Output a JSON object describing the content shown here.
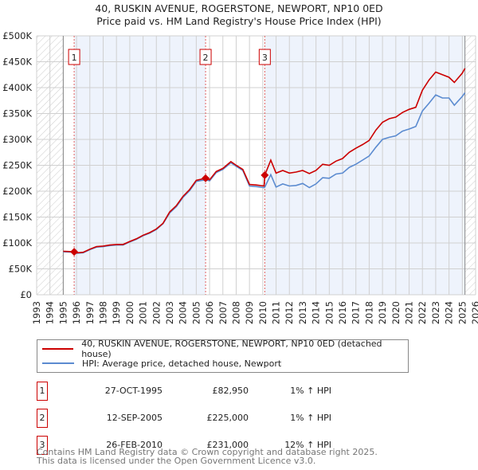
{
  "chart_data": {
    "type": "line",
    "title": "40, RUSKIN AVENUE, ROGERSTONE, NEWPORT, NP10 0ED",
    "subtitle": "Price paid vs. HM Land Registry's House Price Index (HPI)",
    "xlim": [
      1993,
      2026
    ],
    "ylim": [
      0,
      500000
    ],
    "x_ticks": [
      "1993",
      "1994",
      "1995",
      "1996",
      "1997",
      "1998",
      "1999",
      "2000",
      "2001",
      "2002",
      "2003",
      "2004",
      "2005",
      "2006",
      "2007",
      "2008",
      "2009",
      "2010",
      "2011",
      "2012",
      "2013",
      "2014",
      "2015",
      "2016",
      "2017",
      "2018",
      "2019",
      "2020",
      "2021",
      "2022",
      "2023",
      "2024",
      "2025",
      "2026"
    ],
    "y_ticks": [
      {
        "v": 0,
        "label": "£0"
      },
      {
        "v": 50000,
        "label": "£50K"
      },
      {
        "v": 100000,
        "label": "£100K"
      },
      {
        "v": 150000,
        "label": "£150K"
      },
      {
        "v": 200000,
        "label": "£200K"
      },
      {
        "v": 250000,
        "label": "£250K"
      },
      {
        "v": 300000,
        "label": "£300K"
      },
      {
        "v": 350000,
        "label": "£350K"
      },
      {
        "v": 400000,
        "label": "£400K"
      },
      {
        "v": 450000,
        "label": "£450K"
      },
      {
        "v": 500000,
        "label": "£500K"
      }
    ],
    "grid": true,
    "data_start": 1995.0,
    "data_end": 2025.2,
    "series": [
      {
        "name": "40, RUSKIN AVENUE, ROGERSTONE, NEWPORT, NP10 0ED (detached house)",
        "color": "#cc0000",
        "x": [
          1995,
          1995.8,
          1996,
          1996.5,
          1997,
          1997.5,
          1998,
          1998.5,
          1999,
          1999.5,
          2000,
          2000.5,
          2001,
          2001.5,
          2002,
          2002.5,
          2003,
          2003.5,
          2004,
          2004.5,
          2005,
          2005.7,
          2006,
          2006.5,
          2007,
          2007.6,
          2008,
          2008.5,
          2009,
          2009.5,
          2010.1,
          2010.15,
          2010.6,
          2011,
          2011.5,
          2012,
          2012.5,
          2013,
          2013.5,
          2014,
          2014.5,
          2015,
          2015.5,
          2016,
          2016.5,
          2017,
          2017.5,
          2018,
          2018.5,
          2019,
          2019.5,
          2020,
          2020.5,
          2021,
          2021.5,
          2022,
          2022.5,
          2023,
          2023.5,
          2024,
          2024.4,
          2025,
          2025.2
        ],
        "y": [
          84000,
          82950,
          81000,
          82000,
          88000,
          93000,
          94000,
          96000,
          97000,
          97000,
          103000,
          108000,
          115000,
          120000,
          127000,
          138000,
          160000,
          172000,
          190000,
          203000,
          221000,
          225000,
          222000,
          238000,
          244000,
          257000,
          250000,
          242000,
          213000,
          212000,
          210000,
          231000,
          260000,
          235000,
          240000,
          235000,
          237000,
          240000,
          234000,
          240000,
          252000,
          250000,
          258000,
          263000,
          275000,
          283000,
          290000,
          298000,
          318000,
          333000,
          340000,
          343000,
          352000,
          358000,
          362000,
          395000,
          415000,
          430000,
          425000,
          420000,
          410000,
          428000,
          437000
        ]
      },
      {
        "name": "HPI: Average price, detached house, Newport",
        "color": "#5b8bd0",
        "x": [
          1995,
          1995.8,
          1996,
          1996.5,
          1997,
          1997.5,
          1998,
          1998.5,
          1999,
          1999.5,
          2000,
          2000.5,
          2001,
          2001.5,
          2002,
          2002.5,
          2003,
          2003.5,
          2004,
          2004.5,
          2005,
          2005.7,
          2006,
          2006.5,
          2007,
          2007.6,
          2008,
          2008.5,
          2009,
          2009.5,
          2010.1,
          2010.15,
          2010.6,
          2011,
          2011.5,
          2012,
          2012.5,
          2013,
          2013.5,
          2014,
          2014.5,
          2015,
          2015.5,
          2016,
          2016.5,
          2017,
          2017.5,
          2018,
          2018.5,
          2019,
          2019.5,
          2020,
          2020.5,
          2021,
          2021.5,
          2022,
          2022.5,
          2023,
          2023.5,
          2024,
          2024.4,
          2025,
          2025.2
        ],
        "y": [
          83000,
          82000,
          80000,
          81000,
          87000,
          92000,
          93000,
          95000,
          96000,
          96000,
          102000,
          107000,
          114000,
          119000,
          126000,
          137000,
          158000,
          170000,
          188000,
          201000,
          219000,
          222000,
          220000,
          236000,
          242000,
          255000,
          248000,
          240000,
          210000,
          209000,
          207000,
          208000,
          232000,
          208000,
          214000,
          210000,
          211000,
          215000,
          207000,
          214000,
          226000,
          225000,
          233000,
          235000,
          246000,
          252000,
          260000,
          268000,
          285000,
          300000,
          304000,
          307000,
          316000,
          320000,
          325000,
          355000,
          370000,
          386000,
          380000,
          380000,
          366000,
          383000,
          390000
        ]
      }
    ],
    "sales": [
      {
        "label": "1",
        "x": 1995.82,
        "y": 82950
      },
      {
        "label": "2",
        "x": 2005.7,
        "y": 225000
      },
      {
        "label": "3",
        "x": 2010.15,
        "y": 231000
      }
    ]
  },
  "legend": {
    "red": "40, RUSKIN AVENUE, ROGERSTONE, NEWPORT, NP10 0ED (detached house)",
    "blue": "HPI: Average price, detached house, Newport"
  },
  "transactions": [
    {
      "num": "1",
      "date": "27-OCT-1995",
      "price": "£82,950",
      "hpi": "1% ↑ HPI"
    },
    {
      "num": "2",
      "date": "12-SEP-2005",
      "price": "£225,000",
      "hpi": "1% ↑ HPI"
    },
    {
      "num": "3",
      "date": "26-FEB-2010",
      "price": "£231,000",
      "hpi": "12% ↑ HPI"
    }
  ],
  "footer": {
    "line1": "Contains HM Land Registry data © Crown copyright and database right 2025.",
    "line2": "This data is licensed under the Open Government Licence v3.0."
  }
}
